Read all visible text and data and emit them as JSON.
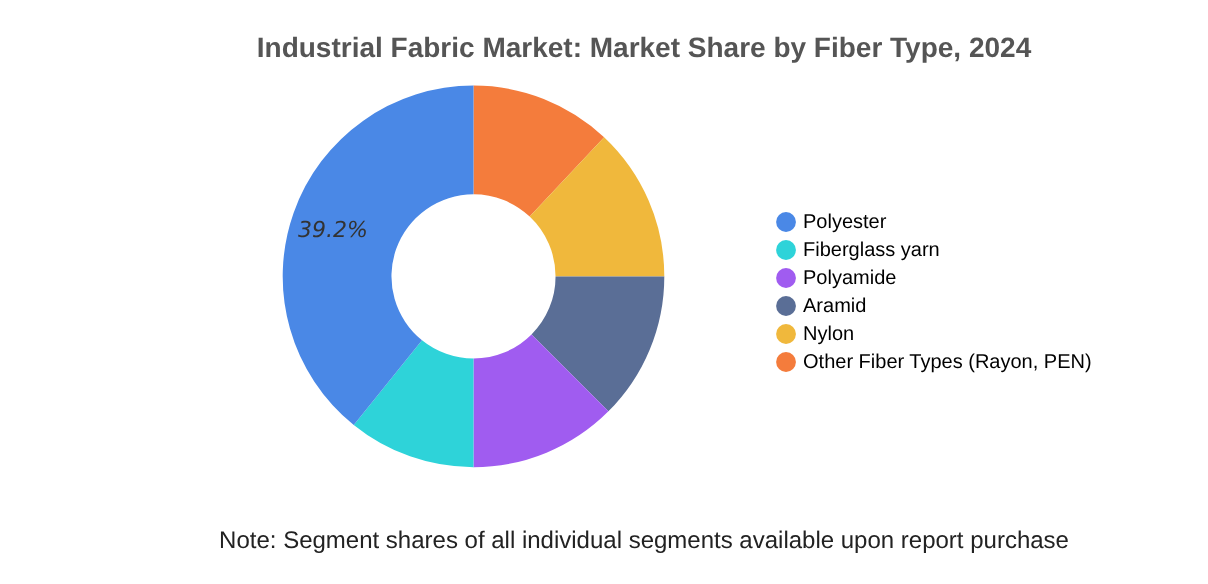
{
  "chart_data": {
    "type": "donut",
    "title": "Industrial Fabric Market: Market Share by Fiber Type, 2024",
    "categories": [
      "Polyester",
      "Fiberglass yarn",
      "Polyamide",
      "Aramid",
      "Nylon",
      "Other Fiber Types (Rayon, PEN)"
    ],
    "values": [
      39.2,
      10.8,
      12.5,
      12.5,
      13,
      12
    ],
    "colors": [
      "#4a88e6",
      "#2ed3d9",
      "#a05cf0",
      "#5a6e96",
      "#f0b83c",
      "#f47c3c"
    ],
    "value_labels": [
      "39.2%",
      null,
      null,
      null,
      null,
      null
    ],
    "legend": "right",
    "annotations": [
      "Note: Segment shares of all individual segments available upon report purchase"
    ]
  }
}
